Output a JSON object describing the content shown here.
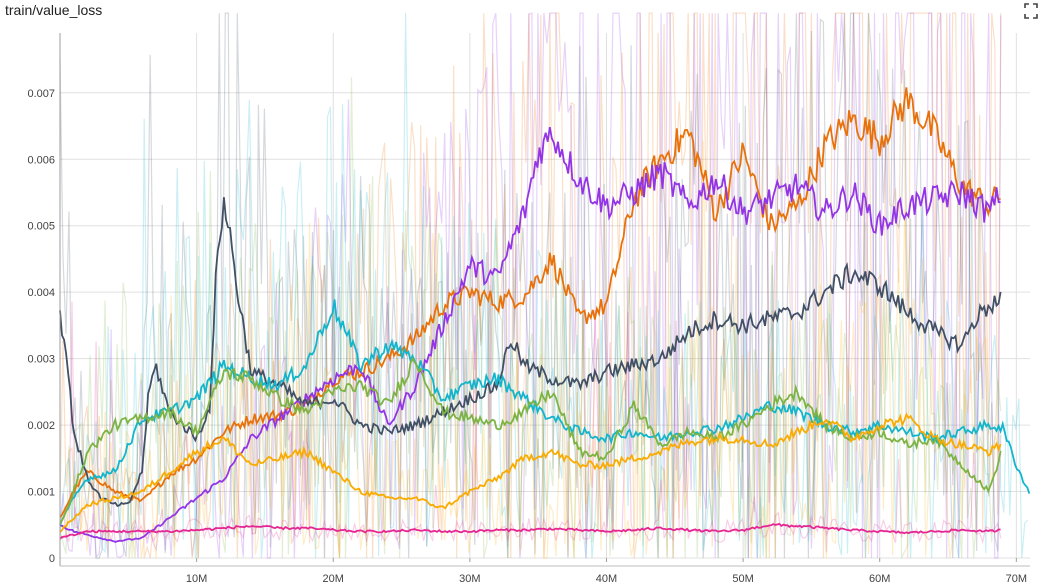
{
  "header": {
    "title": "train/value_loss",
    "expand_icon": "fullscreen-icon"
  },
  "chart_data": {
    "type": "line",
    "title": "train/value_loss",
    "xlabel": "",
    "ylabel": "",
    "xlim": [
      0,
      71000000
    ],
    "ylim": [
      0,
      0.0079
    ],
    "grid": true,
    "legend": "none",
    "x_ticks": [
      {
        "v": 10000000,
        "label": "10M"
      },
      {
        "v": 20000000,
        "label": "20M"
      },
      {
        "v": 30000000,
        "label": "30M"
      },
      {
        "v": 40000000,
        "label": "40M"
      },
      {
        "v": 50000000,
        "label": "50M"
      },
      {
        "v": 60000000,
        "label": "60M"
      },
      {
        "v": 70000000,
        "label": "70M"
      }
    ],
    "y_ticks": [
      {
        "v": 0,
        "label": "0"
      },
      {
        "v": 0.001,
        "label": "0.001"
      },
      {
        "v": 0.002,
        "label": "0.002"
      },
      {
        "v": 0.003,
        "label": "0.003"
      },
      {
        "v": 0.004,
        "label": "0.004"
      },
      {
        "v": 0.005,
        "label": "0.005"
      },
      {
        "v": 0.006,
        "label": "0.006"
      },
      {
        "v": 0.007,
        "label": "0.007"
      }
    ],
    "series": [
      {
        "color": "#e8710a",
        "x_m": [
          0,
          1,
          2,
          4,
          6,
          8,
          10,
          12,
          14,
          16,
          18,
          20,
          22,
          24,
          26,
          28,
          30,
          32,
          34,
          36,
          38,
          40,
          42,
          44,
          46,
          48,
          50,
          52,
          54,
          56,
          58,
          60,
          62,
          64,
          66,
          68,
          68.9
        ],
        "y_milli": [
          0.6,
          1.0,
          1.3,
          1.0,
          0.85,
          1.25,
          1.5,
          1.9,
          2.1,
          2.15,
          2.3,
          2.7,
          2.8,
          3.0,
          3.3,
          3.8,
          4.0,
          3.85,
          3.95,
          4.5,
          3.6,
          3.8,
          5.4,
          6.0,
          6.4,
          5.2,
          6.1,
          5.0,
          5.3,
          6.2,
          6.6,
          6.3,
          6.9,
          6.4,
          5.6,
          5.3,
          5.5
        ]
      },
      {
        "color": "#9334e6",
        "x_m": [
          0,
          1,
          2,
          4,
          6,
          8,
          10,
          12,
          14,
          16,
          18,
          20,
          22,
          24,
          26,
          28,
          30,
          32,
          34,
          35,
          36,
          38,
          40,
          42,
          44,
          46,
          48,
          50,
          52,
          54,
          56,
          58,
          60,
          62,
          64,
          66,
          68,
          68.9
        ],
        "y_milli": [
          0.5,
          0.4,
          0.35,
          0.25,
          0.3,
          0.6,
          0.9,
          1.2,
          1.8,
          2.1,
          2.4,
          2.7,
          2.9,
          2.0,
          2.6,
          3.5,
          4.4,
          4.2,
          5.2,
          6.1,
          6.4,
          5.7,
          5.3,
          5.5,
          5.8,
          5.3,
          5.7,
          5.2,
          5.4,
          5.6,
          5.2,
          5.5,
          5.0,
          5.3,
          5.4,
          5.5,
          5.2,
          5.5
        ]
      },
      {
        "color": "#425066",
        "x_m": [
          0,
          0.5,
          1,
          2,
          3,
          4,
          5,
          6,
          6.5,
          7,
          8,
          9,
          10,
          11,
          11.5,
          12,
          12.5,
          13,
          14,
          16,
          18,
          20,
          22,
          24,
          26,
          28,
          30,
          32,
          33,
          34,
          36,
          38,
          40,
          42,
          44,
          46,
          48,
          50,
          52,
          54,
          56,
          58,
          60,
          62,
          64,
          66,
          67,
          68,
          68.9
        ],
        "y_milli": [
          3.7,
          3.0,
          1.9,
          1.2,
          0.9,
          0.8,
          0.8,
          1.3,
          2.5,
          2.9,
          2.2,
          2.0,
          1.8,
          2.3,
          4.6,
          5.35,
          4.8,
          4.0,
          2.8,
          2.6,
          2.3,
          2.4,
          2.0,
          1.9,
          2.0,
          2.2,
          2.4,
          2.6,
          3.3,
          2.9,
          2.7,
          2.6,
          2.8,
          2.9,
          3.0,
          3.4,
          3.6,
          3.5,
          3.6,
          3.7,
          4.0,
          4.3,
          4.1,
          3.7,
          3.4,
          3.2,
          3.6,
          3.8,
          3.9
        ]
      },
      {
        "color": "#12b5cb",
        "x_m": [
          0,
          1,
          2,
          4,
          6,
          8,
          10,
          12,
          14,
          16,
          18,
          20,
          22,
          24,
          26,
          28,
          30,
          32,
          34,
          36,
          38,
          40,
          42,
          44,
          46,
          48,
          50,
          52,
          54,
          56,
          58,
          60,
          62,
          64,
          66,
          68,
          69,
          70,
          71
        ],
        "y_milli": [
          0.5,
          0.9,
          1.2,
          1.3,
          2.1,
          2.2,
          2.4,
          2.9,
          2.7,
          2.6,
          2.9,
          3.8,
          2.9,
          3.2,
          3.0,
          2.4,
          2.6,
          2.7,
          2.4,
          2.1,
          1.9,
          1.8,
          1.9,
          1.8,
          1.9,
          1.95,
          2.1,
          2.3,
          2.2,
          2.0,
          1.9,
          2.0,
          1.9,
          1.8,
          1.9,
          2.0,
          1.95,
          1.4,
          0.95
        ]
      },
      {
        "color": "#7cb342",
        "x_m": [
          0,
          1,
          2,
          4,
          6,
          8,
          10,
          12,
          14,
          16,
          18,
          20,
          22,
          24,
          26,
          28,
          30,
          32,
          34,
          36,
          38,
          40,
          42,
          44,
          46,
          48,
          50,
          52,
          54,
          56,
          58,
          60,
          62,
          64,
          66,
          68,
          68.9
        ],
        "y_milli": [
          0.5,
          1.0,
          1.6,
          2.0,
          2.1,
          2.2,
          1.9,
          2.8,
          2.7,
          2.4,
          2.2,
          2.5,
          2.6,
          2.3,
          3.0,
          2.2,
          2.1,
          2.0,
          2.2,
          2.5,
          1.6,
          1.5,
          2.3,
          1.7,
          1.9,
          1.8,
          2.0,
          2.3,
          2.5,
          2.0,
          1.8,
          1.9,
          1.7,
          1.8,
          1.4,
          1.0,
          1.6
        ]
      },
      {
        "color": "#f9ab00",
        "x_m": [
          0,
          1,
          2,
          4,
          6,
          8,
          10,
          12,
          14,
          16,
          18,
          20,
          22,
          24,
          26,
          28,
          30,
          32,
          34,
          36,
          38,
          40,
          42,
          44,
          46,
          48,
          50,
          52,
          54,
          56,
          58,
          60,
          62,
          64,
          66,
          68,
          68.9
        ],
        "y_milli": [
          0.4,
          0.6,
          0.8,
          0.9,
          1.0,
          1.3,
          1.6,
          1.8,
          1.4,
          1.5,
          1.6,
          1.3,
          1.0,
          0.9,
          0.9,
          0.75,
          1.0,
          1.2,
          1.5,
          1.6,
          1.4,
          1.4,
          1.5,
          1.6,
          1.75,
          1.8,
          1.8,
          1.7,
          1.9,
          2.1,
          1.8,
          2.0,
          2.1,
          1.8,
          1.7,
          1.6,
          1.7
        ]
      },
      {
        "color": "#e52592",
        "x_m": [
          0,
          1,
          2,
          4,
          6,
          8,
          10,
          12,
          14,
          16,
          18,
          20,
          22,
          24,
          26,
          28,
          30,
          32,
          34,
          36,
          38,
          40,
          42,
          44,
          46,
          48,
          50,
          52,
          54,
          56,
          58,
          60,
          62,
          64,
          66,
          68,
          68.9
        ],
        "y_milli": [
          0.3,
          0.35,
          0.4,
          0.4,
          0.4,
          0.4,
          0.42,
          0.45,
          0.48,
          0.45,
          0.45,
          0.42,
          0.4,
          0.4,
          0.42,
          0.4,
          0.4,
          0.42,
          0.42,
          0.44,
          0.42,
          0.4,
          0.42,
          0.45,
          0.42,
          0.4,
          0.42,
          0.5,
          0.48,
          0.45,
          0.42,
          0.4,
          0.38,
          0.4,
          0.42,
          0.4,
          0.42
        ]
      }
    ]
  }
}
